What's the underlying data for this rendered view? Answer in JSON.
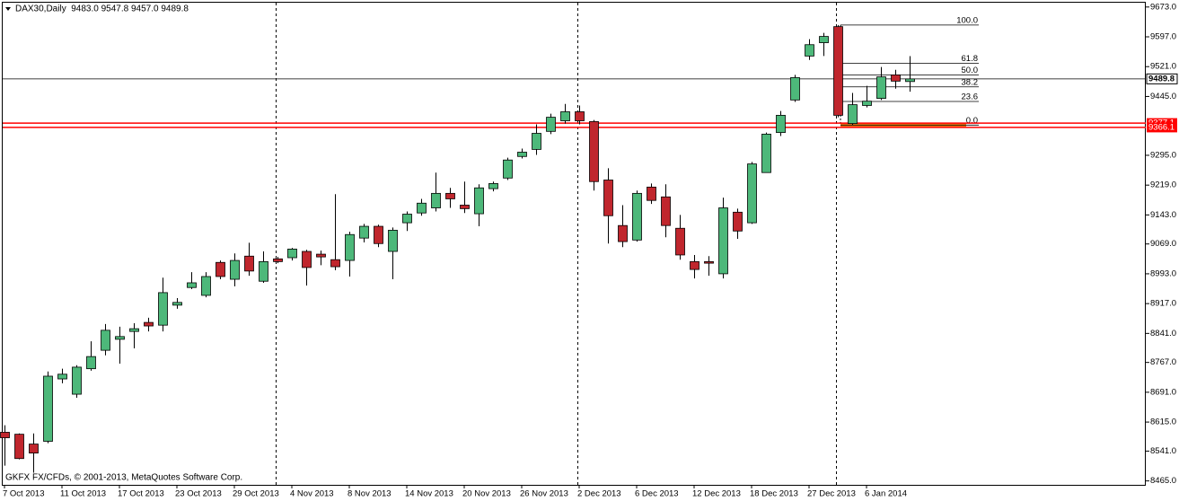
{
  "chart_data": {
    "type": "candlestick",
    "title": "DAX30,Daily  9483.0 9547.8 9457.0 9489.8",
    "copyright": "GKFX FX/CFDs, © 2001-2013, MetaQuotes Software Corp.",
    "categories": [
      "7 Oct 2013",
      null,
      null,
      null,
      "11 Oct 2013",
      null,
      null,
      null,
      "17 Oct 2013",
      null,
      null,
      null,
      "23 Oct 2013",
      null,
      null,
      null,
      "29 Oct 2013",
      null,
      null,
      null,
      "4 Nov 2013",
      null,
      null,
      null,
      "8 Nov 2013",
      null,
      null,
      null,
      "14 Nov 2013",
      null,
      null,
      null,
      "20 Nov 2013",
      null,
      null,
      null,
      "26 Nov 2013",
      null,
      null,
      null,
      "2 Dec 2013",
      null,
      null,
      null,
      "6 Dec 2013",
      null,
      null,
      null,
      "12 Dec 2013",
      null,
      null,
      null,
      "18 Dec 2013",
      null,
      null,
      null,
      "27 Dec 2013",
      null,
      null,
      null,
      "6 Jan 2014",
      null,
      null,
      null
    ],
    "open": [
      8589,
      8584,
      8559,
      8566,
      8725,
      8686,
      8751,
      8798,
      8826,
      8846,
      8869,
      8862,
      8913,
      8958,
      8938,
      9022,
      8979,
      9038,
      8974,
      9031,
      9034,
      9050,
      9043,
      9029,
      9027,
      9084,
      9114,
      9050,
      9123,
      9148,
      9161,
      9198,
      9168,
      9146,
      9210,
      9237,
      9292,
      9310,
      9356,
      9383,
      9406,
      9381,
      9232,
      9116,
      9079,
      9214,
      9189,
      9109,
      9024,
      9024,
      8993,
      9150,
      9123,
      9251,
      9353,
      9436,
      9548,
      9582,
      9623,
      9376,
      9422,
      9440,
      9500,
      9483
    ],
    "high": [
      8607,
      8586,
      8586,
      8744,
      8751,
      8760,
      8821,
      8865,
      8858,
      8867,
      8881,
      8983,
      8931,
      8997,
      8997,
      9027,
      9045,
      9072,
      9050,
      9036,
      9059,
      9054,
      9052,
      9196,
      9100,
      9120,
      9118,
      9111,
      9152,
      9184,
      9251,
      9212,
      9228,
      9221,
      9228,
      9289,
      9312,
      9374,
      9401,
      9426,
      9422,
      9385,
      9262,
      9168,
      9205,
      9223,
      9221,
      9143,
      9041,
      9038,
      9187,
      9159,
      9278,
      9353,
      9408,
      9500,
      9591,
      9607,
      9627,
      9454,
      9472,
      9520,
      9513,
      9547.8
    ],
    "low": [
      8504,
      8520,
      8486,
      8561,
      8714,
      8677,
      8746,
      8785,
      8764,
      8803,
      8846,
      8846,
      8904,
      8954,
      8933,
      8979,
      8961,
      8988,
      8970,
      9020,
      9027,
      8963,
      9015,
      9002,
      8986,
      9073,
      9061,
      8979,
      9102,
      9141,
      9152,
      9161,
      9148,
      9114,
      9203,
      9232,
      9287,
      9296,
      9349,
      9376,
      9374,
      9205,
      9070,
      9061,
      9075,
      9171,
      9086,
      9029,
      8981,
      8988,
      8981,
      9082,
      9120,
      9251,
      9344,
      9431,
      9538,
      9548,
      9392,
      9372,
      9417,
      9436,
      9465,
      9457
    ],
    "close": [
      8575,
      8522,
      8536,
      8732,
      8737,
      8755,
      8782,
      8849,
      8833,
      8853,
      8860,
      8945,
      8920,
      8970,
      8986,
      8986,
      9027,
      9000,
      9024,
      9024,
      9056,
      9009,
      9036,
      9011,
      9093,
      9114,
      9070,
      9104,
      9145,
      9173,
      9198,
      9184,
      9159,
      9212,
      9223,
      9283,
      9303,
      9351,
      9392,
      9406,
      9383,
      9228,
      9141,
      9075,
      9198,
      9180,
      9116,
      9041,
      9004,
      9020,
      9161,
      9102,
      9273,
      9349,
      9397,
      9493,
      9577,
      9598,
      9397,
      9424,
      9433,
      9495,
      9484,
      9489.8
    ],
    "up_color": "#4db87a",
    "down_color": "#c0262d",
    "ylim": [
      8455,
      9684
    ],
    "yticks": [
      {
        "value": 9673,
        "label": "9673.0"
      },
      {
        "value": 9597,
        "label": "9597.0"
      },
      {
        "value": 9521,
        "label": "9521.0"
      },
      {
        "value": 9445,
        "label": "9445.0"
      },
      {
        "value": 9295,
        "label": "9295.0"
      },
      {
        "value": 9219,
        "label": "9219.0"
      },
      {
        "value": 9143,
        "label": "9143.0"
      },
      {
        "value": 9069,
        "label": "9069.0"
      },
      {
        "value": 8993,
        "label": "8993.0"
      },
      {
        "value": 8917,
        "label": "8917.0"
      },
      {
        "value": 8841,
        "label": "8841.0"
      },
      {
        "value": 8767,
        "label": "8767.0"
      },
      {
        "value": 8691,
        "label": "8691.0"
      },
      {
        "value": 8615,
        "label": "8615.0"
      },
      {
        "value": 8541,
        "label": "8541.0"
      },
      {
        "value": 8465,
        "label": "8465.0"
      }
    ],
    "current_price": 9489.8,
    "levels": [
      9377.1,
      9366.1
    ],
    "level_color": "#ff0000",
    "zone_color": "#ff7f1a",
    "fib": {
      "high": 9627,
      "low": 9372,
      "levels": [
        {
          "value": 100,
          "label": "100.0"
        },
        {
          "value": 61.8,
          "label": "61.8"
        },
        {
          "value": 50,
          "label": "50.0"
        },
        {
          "value": 38.2,
          "label": "38.2"
        },
        {
          "value": 23.6,
          "label": "23.6"
        },
        {
          "value": 0,
          "label": "0.0"
        }
      ]
    }
  }
}
